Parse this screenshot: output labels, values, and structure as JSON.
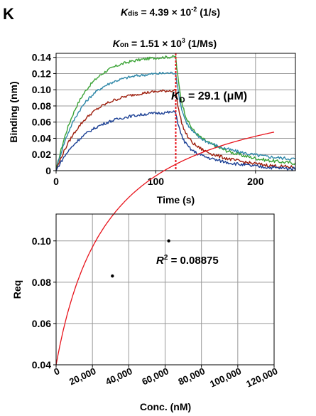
{
  "panel_label": "K",
  "constants": {
    "kdis": {
      "sym": "K",
      "sub": "dis",
      "eq": " = 4.39 × 10",
      "exp": "-2",
      "unit": " (1/s)"
    },
    "kon": {
      "sym": "K",
      "sub": "on",
      "eq": " = 1.51 × 10",
      "exp": "3",
      "unit": " (1/Ms)"
    },
    "kd": {
      "sym": "K",
      "sub": "D",
      "eq": " = 29.1 (μM)"
    }
  },
  "r2": {
    "sym": "R",
    "exp": "2",
    "eq": " = 0.08875"
  },
  "colors": {
    "green": "#3aa335",
    "teal": "#2e87a8",
    "red": "#9e1f0e",
    "blue": "#1a3f94",
    "dissociation_line": "#e8131b",
    "fit": "#e8131b",
    "grid": "#999999"
  },
  "chart_data": [
    {
      "type": "line",
      "xlabel": "Time (s)",
      "ylabel": "Binding (nm)",
      "xlim": [
        0,
        240
      ],
      "ylim": [
        0,
        0.145
      ],
      "x_ticks": [
        0,
        100,
        200
      ],
      "y_ticks": [
        0,
        0.02,
        0.04,
        0.06,
        0.08,
        0.1,
        0.12,
        0.14
      ],
      "y_tick_labels": [
        "0",
        "0.02",
        "0.04",
        "0.06",
        "0.08",
        "0.10",
        "0.12",
        "0.14"
      ],
      "dissociation_start": 120,
      "grid": true,
      "series": [
        {
          "color": "green",
          "plateau": 0.142,
          "k_assoc": 0.04,
          "end_value": 0.005
        },
        {
          "color": "teal",
          "plateau": 0.122,
          "k_assoc": 0.04,
          "end_value": 0.011
        },
        {
          "color": "red",
          "plateau": 0.101,
          "k_assoc": 0.034,
          "end_value": 0.001
        },
        {
          "color": "blue",
          "plateau": 0.074,
          "k_assoc": 0.032,
          "end_value": 0.0
        }
      ]
    },
    {
      "type": "scatter",
      "xlabel": "Conc. (nM)",
      "ylabel": "Req",
      "xlim": [
        0,
        120000
      ],
      "ylim": [
        0.04,
        0.113
      ],
      "x_ticks": [
        0,
        20000,
        40000,
        60000,
        80000,
        100000,
        120000
      ],
      "x_tick_labels": [
        "0",
        "20,000",
        "40,000",
        "60,000",
        "80,000",
        "100,000",
        "120,000"
      ],
      "y_ticks": [
        0.04,
        0.06,
        0.08,
        0.1
      ],
      "y_tick_labels": [
        "0.04",
        "0.06",
        "0.08",
        "0.10"
      ],
      "grid": true,
      "points": [
        {
          "x": 31000,
          "y": 0.083
        },
        {
          "x": 62000,
          "y": 0.1
        }
      ],
      "fit": {
        "model": "langmuir",
        "rmax": 0.14,
        "kd_nM": 29100,
        "offset": 0.04
      }
    }
  ]
}
